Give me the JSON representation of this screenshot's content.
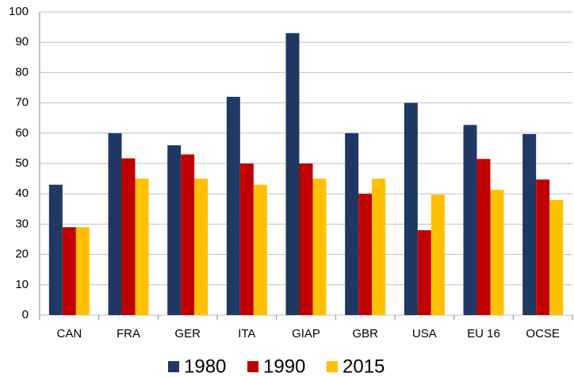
{
  "chart_data": {
    "type": "bar",
    "categories": [
      "CAN",
      "FRA",
      "GER",
      "ITA",
      "GIAP",
      "GBR",
      "USA",
      "EU 16",
      "OCSE"
    ],
    "series": [
      {
        "name": "1980",
        "color": "#1f3864",
        "values": [
          43,
          60,
          56,
          72,
          93,
          60,
          70,
          62.7,
          59.7
        ]
      },
      {
        "name": "1990",
        "color": "#c00000",
        "values": [
          29,
          51.7,
          53,
          50,
          50,
          40,
          28,
          51.5,
          44.7
        ]
      },
      {
        "name": "2015",
        "color": "#ffc000",
        "values": [
          29,
          45,
          45,
          43,
          45,
          45,
          39.7,
          41.3,
          38
        ]
      }
    ],
    "ylim": [
      0,
      100
    ],
    "yticks": [
      0,
      10,
      20,
      30,
      40,
      50,
      60,
      70,
      80,
      90,
      100
    ],
    "grid": true
  }
}
